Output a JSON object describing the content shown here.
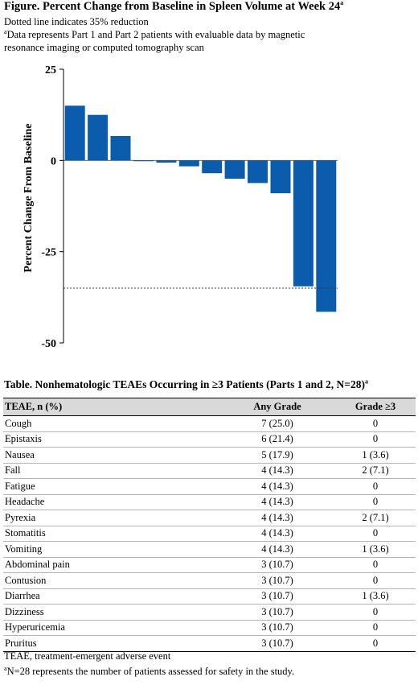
{
  "figure": {
    "title": "Figure. Percent Change from Baseline in Spleen Volume at Week 24",
    "title_sup": "a",
    "note1": "Dotted line indicates 35% reduction",
    "note2_sup": "a",
    "note2_line1": "Data represents Part 1 and Part 2 patients with evaluable data by magnetic",
    "note2_line2": "resonance imaging or computed tomography scan"
  },
  "chart_data": {
    "type": "bar",
    "ylabel": "Percent Change From Baseline",
    "ylim": [
      -50,
      25
    ],
    "yticks": [
      25,
      0,
      -25,
      -50
    ],
    "ytick_labels": [
      "25",
      "0",
      "-25",
      "-50"
    ],
    "values": [
      15,
      12.5,
      6.7,
      0,
      -0.6,
      -1.6,
      -3.5,
      -5.0,
      -6.2,
      -9.0,
      -34.5,
      -41.5
    ],
    "reference_line": -35,
    "bar_color": "#0b5cad",
    "grid": false
  },
  "table": {
    "title": "Table. Nonhematologic TEAEs Occurring in ≥3 Patients (Parts 1 and 2, N=28)",
    "title_sup": "a",
    "headers": [
      "TEAE, n (%)",
      "Any Grade",
      "Grade ≥3"
    ],
    "rows": [
      [
        "Cough",
        "7 (25.0)",
        "0"
      ],
      [
        "Epistaxis",
        "6 (21.4)",
        "0"
      ],
      [
        "Nausea",
        "5 (17.9)",
        "1 (3.6)"
      ],
      [
        "Fall",
        "4 (14.3)",
        "2 (7.1)"
      ],
      [
        "Fatigue",
        "4 (14.3)",
        "0"
      ],
      [
        "Headache",
        "4 (14.3)",
        "0"
      ],
      [
        "Pyrexia",
        "4 (14.3)",
        "2 (7.1)"
      ],
      [
        "Stomatitis",
        "4 (14.3)",
        "0"
      ],
      [
        "Vomiting",
        "4 (14.3)",
        "1 (3.6)"
      ],
      [
        "Abdominal pain",
        "3 (10.7)",
        "0"
      ],
      [
        "Contusion",
        "3 (10.7)",
        "0"
      ],
      [
        "Diarrhea",
        "3 (10.7)",
        "1 (3.6)"
      ],
      [
        "Dizziness",
        "3 (10.7)",
        "0"
      ],
      [
        "Hyperuricemia",
        "3 (10.7)",
        "0"
      ],
      [
        "Pruritus",
        "3 (10.7)",
        "0"
      ]
    ],
    "footnote1": "TEAE, treatment-emergent adverse event",
    "footnote2_sup": "a",
    "footnote2": "N=28 represents the number of patients assessed for safety in the study."
  }
}
